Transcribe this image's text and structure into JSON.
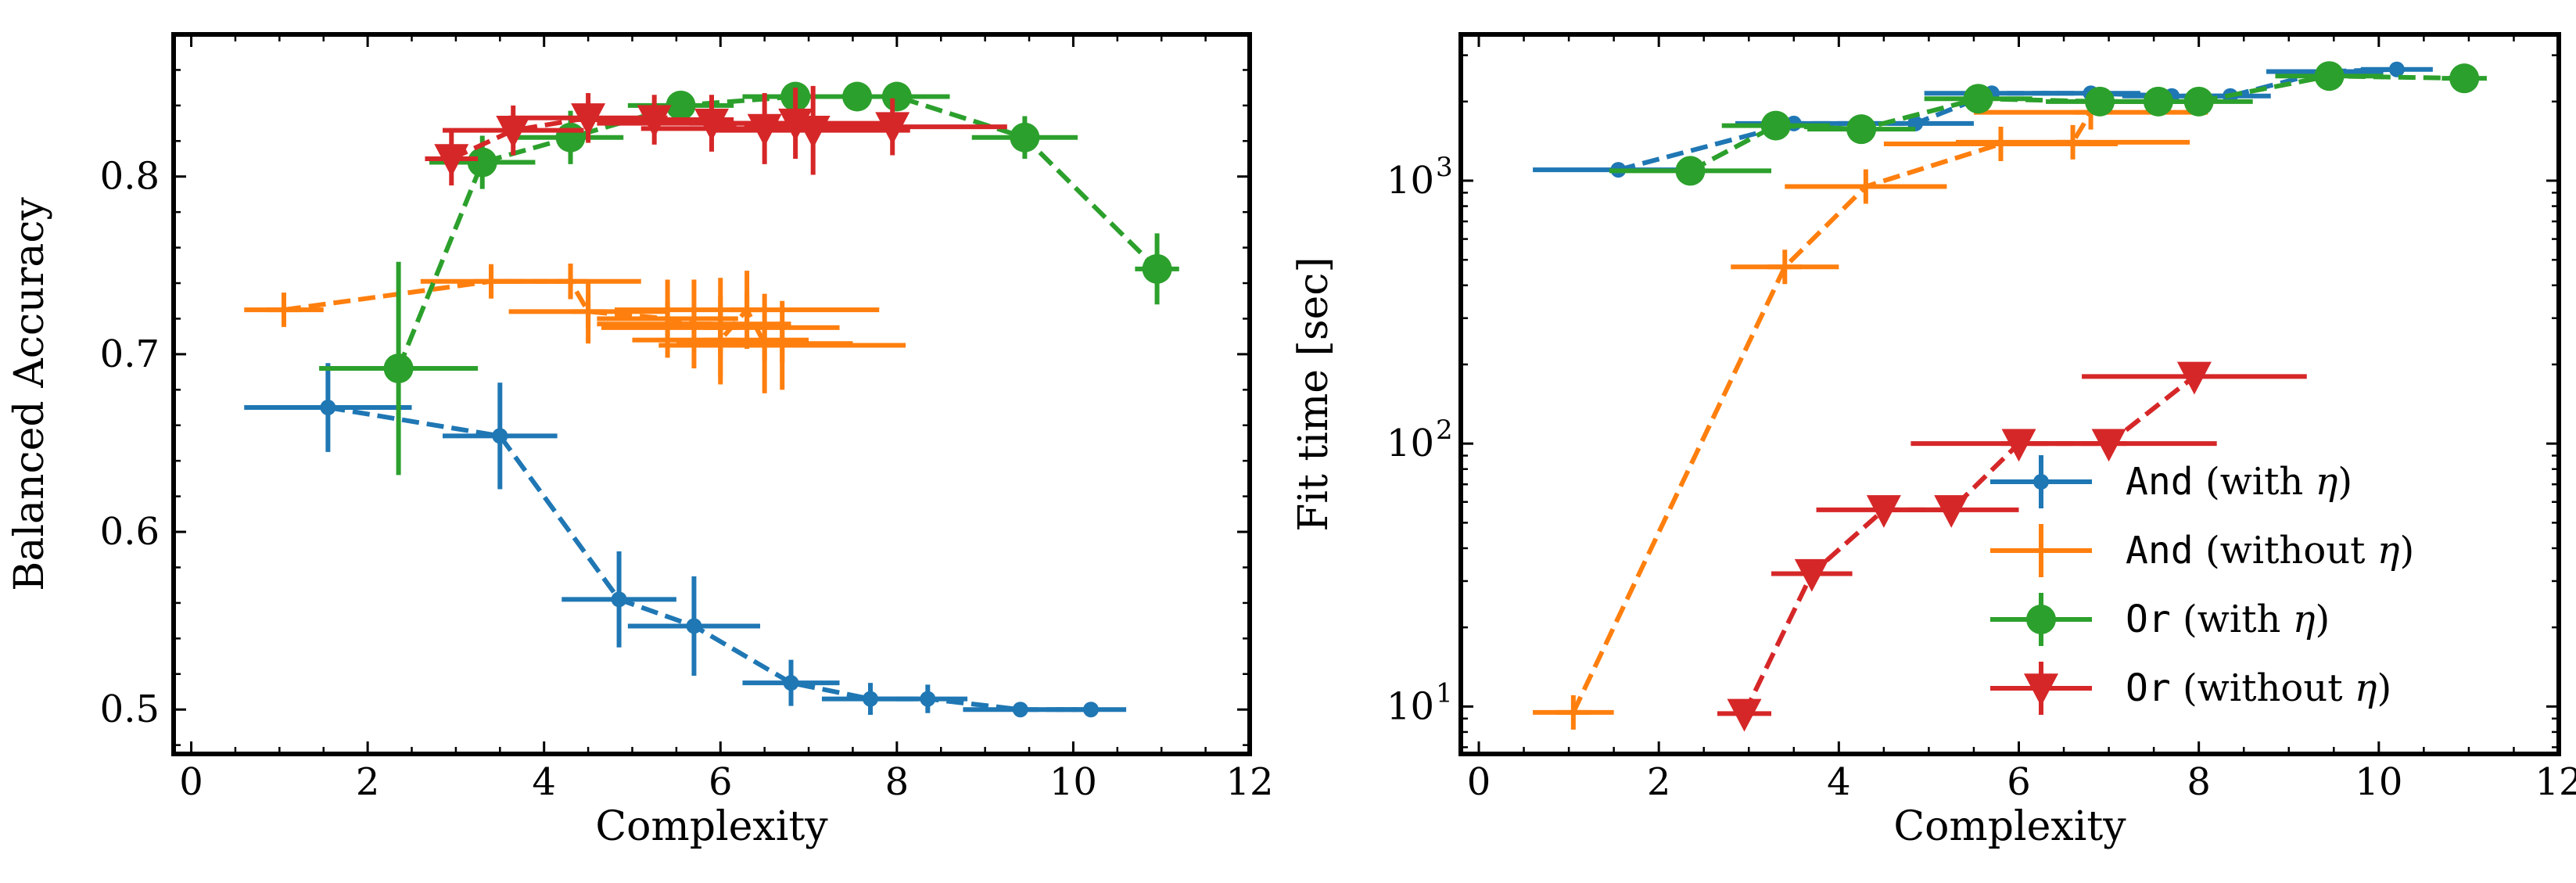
{
  "colors": {
    "and_with_eta": "#1f77b4",
    "and_without_eta": "#ff7f0e",
    "or_with_eta": "#2ca02c",
    "or_without_eta": "#d62728"
  },
  "legend": [
    {
      "key": "and_with_eta",
      "code": "And",
      "text": " (with ",
      "eta": "η",
      "close": ")",
      "marker": "dot"
    },
    {
      "key": "and_without_eta",
      "code": "And",
      "text": " (without ",
      "eta": "η",
      "close": ")",
      "marker": "plus"
    },
    {
      "key": "or_with_eta",
      "code": "Or",
      "text": " (with ",
      "eta": "η",
      "close": ")",
      "marker": "circle"
    },
    {
      "key": "or_without_eta",
      "code": "Or",
      "text": " (without ",
      "eta": "η",
      "close": ")",
      "marker": "triangle"
    }
  ],
  "chart_data": [
    {
      "type": "line",
      "xlabel": "Complexity",
      "ylabel": "Balanced Accuracy",
      "xlim": [
        -0.2,
        12
      ],
      "ylim": [
        0.475,
        0.88
      ],
      "xticks": [
        0,
        2,
        4,
        6,
        8,
        10,
        12
      ],
      "xtick_labels": [
        "0",
        "2",
        "4",
        "6",
        "8",
        "10",
        "12"
      ],
      "yticks": [
        0.5,
        0.6,
        0.7,
        0.8
      ],
      "ytick_labels": [
        "0.5",
        "0.6",
        "0.7",
        "0.8"
      ],
      "yscale": "linear",
      "series": [
        {
          "key": "and_with_eta",
          "marker": "dot",
          "points": [
            {
              "x": 1.55,
              "y": 0.67,
              "xerr": 0.95,
              "yerr": 0.025
            },
            {
              "x": 3.5,
              "y": 0.654,
              "xerr": 0.65,
              "yerr": 0.03
            },
            {
              "x": 4.85,
              "y": 0.562,
              "xerr": 0.65,
              "yerr": 0.027
            },
            {
              "x": 5.7,
              "y": 0.547,
              "xerr": 0.75,
              "yerr": 0.028
            },
            {
              "x": 6.8,
              "y": 0.515,
              "xerr": 0.55,
              "yerr": 0.013
            },
            {
              "x": 7.7,
              "y": 0.506,
              "xerr": 0.55,
              "yerr": 0.009
            },
            {
              "x": 8.35,
              "y": 0.506,
              "xerr": 0.45,
              "yerr": 0.008
            },
            {
              "x": 9.4,
              "y": 0.5,
              "xerr": 0.65,
              "yerr": 0.003
            },
            {
              "x": 10.2,
              "y": 0.5,
              "xerr": 0.4,
              "yerr": 0.002
            }
          ]
        },
        {
          "key": "and_without_eta",
          "marker": "plus",
          "points": [
            {
              "x": 1.05,
              "y": 0.725,
              "xerr": 0.45,
              "yerr": 0.008
            },
            {
              "x": 3.4,
              "y": 0.741,
              "xerr": 0.8,
              "yerr": 0.008
            },
            {
              "x": 4.3,
              "y": 0.741,
              "xerr": 0.8,
              "yerr": 0.01
            },
            {
              "x": 4.5,
              "y": 0.724,
              "xerr": 0.9,
              "yerr": 0.018
            },
            {
              "x": 5.4,
              "y": 0.72,
              "xerr": 0.8,
              "yerr": 0.022
            },
            {
              "x": 5.7,
              "y": 0.717,
              "xerr": 1.1,
              "yerr": 0.025
            },
            {
              "x": 6.0,
              "y": 0.715,
              "xerr": 1.35,
              "yerr": 0.028
            },
            {
              "x": 6.0,
              "y": 0.708,
              "xerr": 1.0,
              "yerr": 0.025
            },
            {
              "x": 6.3,
              "y": 0.725,
              "xerr": 1.5,
              "yerr": 0.022
            },
            {
              "x": 6.5,
              "y": 0.706,
              "xerr": 1.0,
              "yerr": 0.028
            },
            {
              "x": 6.7,
              "y": 0.705,
              "xerr": 1.4,
              "yerr": 0.025
            }
          ]
        },
        {
          "key": "or_with_eta",
          "marker": "circle",
          "points": [
            {
              "x": 2.35,
              "y": 0.692,
              "xerr": 0.9,
              "yerr": 0.06
            },
            {
              "x": 3.3,
              "y": 0.808,
              "xerr": 0.6,
              "yerr": 0.015
            },
            {
              "x": 4.3,
              "y": 0.822,
              "xerr": 0.6,
              "yerr": 0.015
            },
            {
              "x": 5.55,
              "y": 0.84,
              "xerr": 0.6,
              "yerr": 0.008
            },
            {
              "x": 6.85,
              "y": 0.845,
              "xerr": 0.6,
              "yerr": 0.006
            },
            {
              "x": 7.55,
              "y": 0.845,
              "xerr": 0.6,
              "yerr": 0.006
            },
            {
              "x": 8.0,
              "y": 0.845,
              "xerr": 0.6,
              "yerr": 0.006
            },
            {
              "x": 9.45,
              "y": 0.822,
              "xerr": 0.6,
              "yerr": 0.012
            },
            {
              "x": 10.95,
              "y": 0.748,
              "xerr": 0.25,
              "yerr": 0.02
            }
          ]
        },
        {
          "key": "or_without_eta",
          "marker": "triangle",
          "points": [
            {
              "x": 2.95,
              "y": 0.81,
              "xerr": 0.3,
              "yerr": 0.015
            },
            {
              "x": 3.65,
              "y": 0.826,
              "xerr": 0.8,
              "yerr": 0.014
            },
            {
              "x": 4.5,
              "y": 0.833,
              "xerr": 0.9,
              "yerr": 0.014
            },
            {
              "x": 5.25,
              "y": 0.832,
              "xerr": 0.9,
              "yerr": 0.014
            },
            {
              "x": 5.9,
              "y": 0.83,
              "xerr": 1.3,
              "yerr": 0.016
            },
            {
              "x": 6.5,
              "y": 0.827,
              "xerr": 1.4,
              "yerr": 0.02
            },
            {
              "x": 6.85,
              "y": 0.83,
              "xerr": 1.2,
              "yerr": 0.02
            },
            {
              "x": 7.05,
              "y": 0.826,
              "xerr": 1.1,
              "yerr": 0.025
            },
            {
              "x": 7.95,
              "y": 0.828,
              "xerr": 1.3,
              "yerr": 0.016
            }
          ]
        }
      ]
    },
    {
      "type": "line",
      "xlabel": "Complexity",
      "ylabel": "Fit time [sec]",
      "xlim": [
        -0.2,
        12
      ],
      "ylim": [
        6.6,
        3600
      ],
      "xticks": [
        0,
        2,
        4,
        6,
        8,
        10,
        12
      ],
      "xtick_labels": [
        "0",
        "2",
        "4",
        "6",
        "8",
        "10",
        "12"
      ],
      "yticks": [
        10,
        100,
        1000
      ],
      "ytick_labels": [
        {
          "base": "10",
          "exp": "1"
        },
        {
          "base": "10",
          "exp": "2"
        },
        {
          "base": "10",
          "exp": "3"
        }
      ],
      "yscale": "log",
      "legend_position": "lower-right",
      "series": [
        {
          "key": "and_with_eta",
          "marker": "dot",
          "points": [
            {
              "x": 1.55,
              "y": 1100,
              "xerr": 0.95
            },
            {
              "x": 3.5,
              "y": 1650,
              "xerr": 0.65
            },
            {
              "x": 4.85,
              "y": 1650,
              "xerr": 0.65
            },
            {
              "x": 5.7,
              "y": 2150,
              "xerr": 0.75
            },
            {
              "x": 6.8,
              "y": 2150,
              "xerr": 0.55
            },
            {
              "x": 7.7,
              "y": 2100,
              "xerr": 0.55
            },
            {
              "x": 8.35,
              "y": 2100,
              "xerr": 0.45
            },
            {
              "x": 9.4,
              "y": 2600,
              "xerr": 0.65
            },
            {
              "x": 10.2,
              "y": 2650,
              "xerr": 0.4
            }
          ]
        },
        {
          "key": "and_without_eta",
          "marker": "plus",
          "points": [
            {
              "x": 1.05,
              "y": 9.5,
              "xerr": 0.45
            },
            {
              "x": 3.4,
              "y": 470,
              "xerr": 0.6
            },
            {
              "x": 4.3,
              "y": 950,
              "xerr": 0.9
            },
            {
              "x": 5.8,
              "y": 1380,
              "xerr": 1.3
            },
            {
              "x": 6.6,
              "y": 1400,
              "xerr": 1.3
            },
            {
              "x": 6.8,
              "y": 1820,
              "xerr": 1.3
            }
          ]
        },
        {
          "key": "or_with_eta",
          "marker": "circle",
          "points": [
            {
              "x": 2.35,
              "y": 1090,
              "xerr": 0.9
            },
            {
              "x": 3.3,
              "y": 1620,
              "xerr": 0.6
            },
            {
              "x": 4.25,
              "y": 1570,
              "xerr": 0.6
            },
            {
              "x": 5.55,
              "y": 2050,
              "xerr": 0.6
            },
            {
              "x": 6.9,
              "y": 2000,
              "xerr": 0.6
            },
            {
              "x": 7.55,
              "y": 2000,
              "xerr": 0.6
            },
            {
              "x": 8.0,
              "y": 2000,
              "xerr": 0.6
            },
            {
              "x": 9.45,
              "y": 2500,
              "xerr": 0.6
            },
            {
              "x": 10.95,
              "y": 2450,
              "xerr": 0.25
            }
          ]
        },
        {
          "key": "or_without_eta",
          "marker": "triangle",
          "points": [
            {
              "x": 2.95,
              "y": 9.4,
              "xerr": 0.3
            },
            {
              "x": 3.7,
              "y": 32,
              "xerr": 0.45
            },
            {
              "x": 4.5,
              "y": 56,
              "xerr": 0.75
            },
            {
              "x": 5.25,
              "y": 56,
              "xerr": 0.75
            },
            {
              "x": 6.0,
              "y": 100,
              "xerr": 1.2
            },
            {
              "x": 7.0,
              "y": 100,
              "xerr": 1.2
            },
            {
              "x": 7.95,
              "y": 180,
              "xerr": 1.25
            }
          ]
        }
      ]
    }
  ]
}
